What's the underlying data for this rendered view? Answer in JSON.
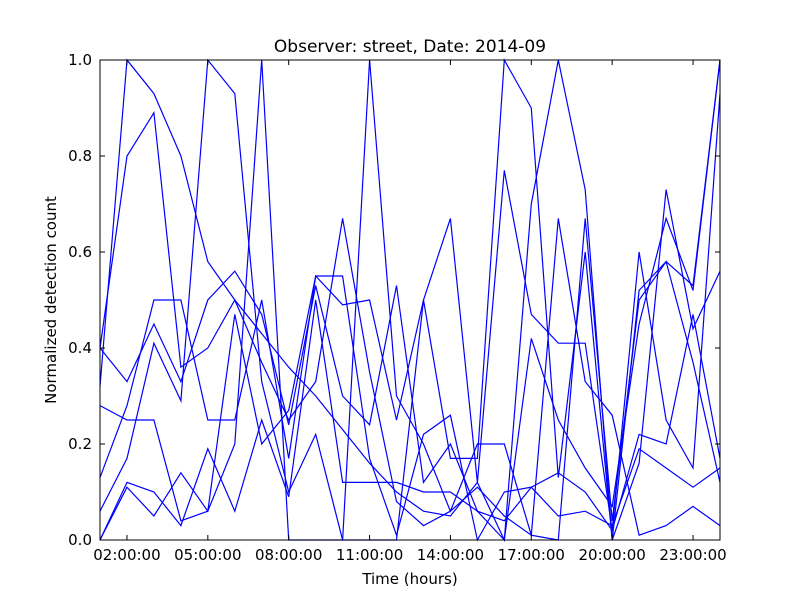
{
  "chart_data": {
    "type": "line",
    "title": "Observer: street, Date: 2014-09",
    "xlabel": "Time (hours)",
    "ylabel": "Normalized detection count",
    "xlim": [
      "01:00:00",
      "24:00:00"
    ],
    "ylim": [
      0,
      1
    ],
    "xticks": [
      "02:00:00",
      "05:00:00",
      "08:00:00",
      "11:00:00",
      "14:00:00",
      "17:00:00",
      "20:00:00",
      "23:00:00"
    ],
    "yticks": [
      "0.0",
      "0.2",
      "0.4",
      "0.6",
      "0.8",
      "1.0"
    ],
    "grid": false,
    "line_color": "#0000ff",
    "series": [
      {
        "x": [
          "01:00:00",
          "02:00:00",
          "03:00:00",
          "04:00:00",
          "05:00:00",
          "06:00:00",
          "07:00:00",
          "08:00:00",
          "09:00:00",
          "10:00:00",
          "11:00:00",
          "12:00:00",
          "13:00:00",
          "14:00:00",
          "15:00:00",
          "16:00:00",
          "17:00:00",
          "18:00:00",
          "19:00:00",
          "20:00:00",
          "21:00:00",
          "22:00:00",
          "23:00:00",
          "24:00:00"
        ],
        "y": [
          0.32,
          1.0,
          0.93,
          0.8,
          0.58,
          0.5,
          0.43,
          0.36,
          0.3,
          0.23,
          0.16,
          0.1,
          0.06,
          0.05,
          0.12,
          0.0,
          0.42,
          0.25,
          0.15,
          0.07,
          0.45,
          0.67,
          0.52,
          1.0
        ]
      },
      {
        "x": [
          "01:00:00",
          "02:00:00",
          "03:00:00",
          "04:00:00",
          "05:00:00",
          "06:00:00",
          "07:00:00",
          "08:00:00",
          "09:00:00",
          "10:00:00",
          "11:00:00",
          "12:00:00",
          "13:00:00",
          "14:00:00",
          "15:00:00",
          "16:00:00",
          "17:00:00",
          "18:00:00",
          "19:00:00",
          "20:00:00",
          "21:00:00",
          "22:00:00",
          "23:00:00",
          "24:00:00"
        ],
        "y": [
          0.4,
          0.33,
          0.45,
          0.33,
          0.5,
          0.56,
          0.47,
          0.24,
          0.53,
          0.3,
          0.24,
          0.53,
          0.12,
          0.2,
          0.06,
          0.0,
          0.7,
          1.0,
          0.73,
          0.0,
          0.52,
          0.58,
          0.53,
          1.0
        ]
      },
      {
        "x": [
          "01:00:00",
          "02:00:00",
          "03:00:00",
          "04:00:00",
          "05:00:00",
          "06:00:00",
          "07:00:00",
          "08:00:00",
          "09:00:00",
          "10:00:00",
          "11:00:00",
          "12:00:00",
          "13:00:00",
          "14:00:00",
          "15:00:00",
          "16:00:00",
          "17:00:00",
          "18:00:00",
          "19:00:00",
          "20:00:00",
          "21:00:00",
          "22:00:00",
          "23:00:00",
          "24:00:00"
        ],
        "y": [
          0.28,
          0.25,
          0.25,
          0.04,
          0.06,
          0.47,
          0.2,
          0.27,
          0.55,
          0.49,
          0.5,
          0.25,
          0.5,
          0.67,
          0.12,
          0.77,
          0.47,
          0.41,
          0.41,
          0.02,
          0.6,
          0.25,
          0.15,
          0.93
        ]
      },
      {
        "x": [
          "01:00:00",
          "02:00:00",
          "03:00:00",
          "04:00:00",
          "05:00:00",
          "06:00:00",
          "07:00:00",
          "08:00:00",
          "09:00:00",
          "10:00:00",
          "11:00:00",
          "12:00:00",
          "13:00:00",
          "14:00:00",
          "15:00:00",
          "16:00:00",
          "17:00:00",
          "18:00:00",
          "19:00:00",
          "20:00:00",
          "21:00:00",
          "22:00:00",
          "23:00:00",
          "24:00:00"
        ],
        "y": [
          0.06,
          0.17,
          0.41,
          0.29,
          1.0,
          0.93,
          0.33,
          0.1,
          0.22,
          0.0,
          0.0,
          0.0,
          0.5,
          0.17,
          0.17,
          1.0,
          0.9,
          0.13,
          0.6,
          0.0,
          0.16,
          0.73,
          0.44,
          0.56
        ]
      },
      {
        "x": [
          "01:00:00",
          "02:00:00",
          "03:00:00",
          "04:00:00",
          "05:00:00",
          "06:00:00",
          "07:00:00",
          "08:00:00",
          "09:00:00",
          "10:00:00",
          "11:00:00",
          "12:00:00",
          "13:00:00",
          "14:00:00",
          "15:00:00",
          "16:00:00",
          "17:00:00",
          "18:00:00",
          "19:00:00",
          "20:00:00",
          "21:00:00",
          "22:00:00",
          "23:00:00",
          "24:00:00"
        ],
        "y": [
          0.0,
          0.11,
          0.05,
          0.14,
          0.06,
          0.2,
          1.0,
          0.0,
          0.0,
          0.0,
          1.0,
          0.3,
          0.2,
          0.06,
          0.2,
          0.2,
          0.01,
          0.0,
          0.67,
          0.04,
          0.5,
          0.58,
          0.37,
          0.12
        ]
      },
      {
        "x": [
          "01:00:00",
          "02:00:00",
          "03:00:00",
          "04:00:00",
          "05:00:00",
          "06:00:00",
          "07:00:00",
          "08:00:00",
          "09:00:00",
          "10:00:00",
          "11:00:00",
          "12:00:00",
          "13:00:00",
          "14:00:00",
          "15:00:00",
          "16:00:00",
          "17:00:00",
          "18:00:00",
          "19:00:00",
          "20:00:00",
          "21:00:00",
          "22:00:00",
          "23:00:00",
          "24:00:00"
        ],
        "y": [
          0.13,
          0.28,
          0.5,
          0.5,
          0.25,
          0.25,
          0.5,
          0.17,
          0.55,
          0.55,
          0.17,
          0.01,
          0.22,
          0.26,
          0.0,
          0.1,
          0.11,
          0.05,
          0.06,
          0.03,
          0.19,
          0.15,
          0.11,
          0.15
        ]
      },
      {
        "x": [
          "01:00:00",
          "02:00:00",
          "03:00:00",
          "04:00:00",
          "05:00:00",
          "06:00:00",
          "07:00:00",
          "08:00:00",
          "09:00:00",
          "10:00:00",
          "11:00:00",
          "12:00:00",
          "13:00:00",
          "14:00:00",
          "15:00:00",
          "16:00:00",
          "17:00:00",
          "18:00:00",
          "19:00:00",
          "20:00:00",
          "21:00:00",
          "22:00:00",
          "23:00:00",
          "24:00:00"
        ],
        "y": [
          0.4,
          0.8,
          0.89,
          0.36,
          0.4,
          0.5,
          0.37,
          0.25,
          0.33,
          0.67,
          0.35,
          0.08,
          0.03,
          0.06,
          0.11,
          0.05,
          0.01,
          0.67,
          0.33,
          0.26,
          0.01,
          0.03,
          0.07,
          0.03
        ]
      },
      {
        "x": [
          "01:00:00",
          "02:00:00",
          "03:00:00",
          "04:00:00",
          "05:00:00",
          "06:00:00",
          "07:00:00",
          "08:00:00",
          "09:00:00",
          "10:00:00",
          "11:00:00",
          "12:00:00",
          "13:00:00",
          "14:00:00",
          "15:00:00",
          "16:00:00",
          "17:00:00",
          "18:00:00",
          "19:00:00",
          "20:00:00",
          "21:00:00",
          "22:00:00",
          "23:00:00",
          "24:00:00"
        ],
        "y": [
          0.0,
          0.12,
          0.1,
          0.03,
          0.19,
          0.06,
          0.25,
          0.09,
          0.5,
          0.12,
          0.12,
          0.12,
          0.1,
          0.1,
          0.06,
          0.04,
          0.11,
          0.14,
          0.1,
          0.02,
          0.22,
          0.2,
          0.47,
          0.17
        ]
      }
    ]
  }
}
